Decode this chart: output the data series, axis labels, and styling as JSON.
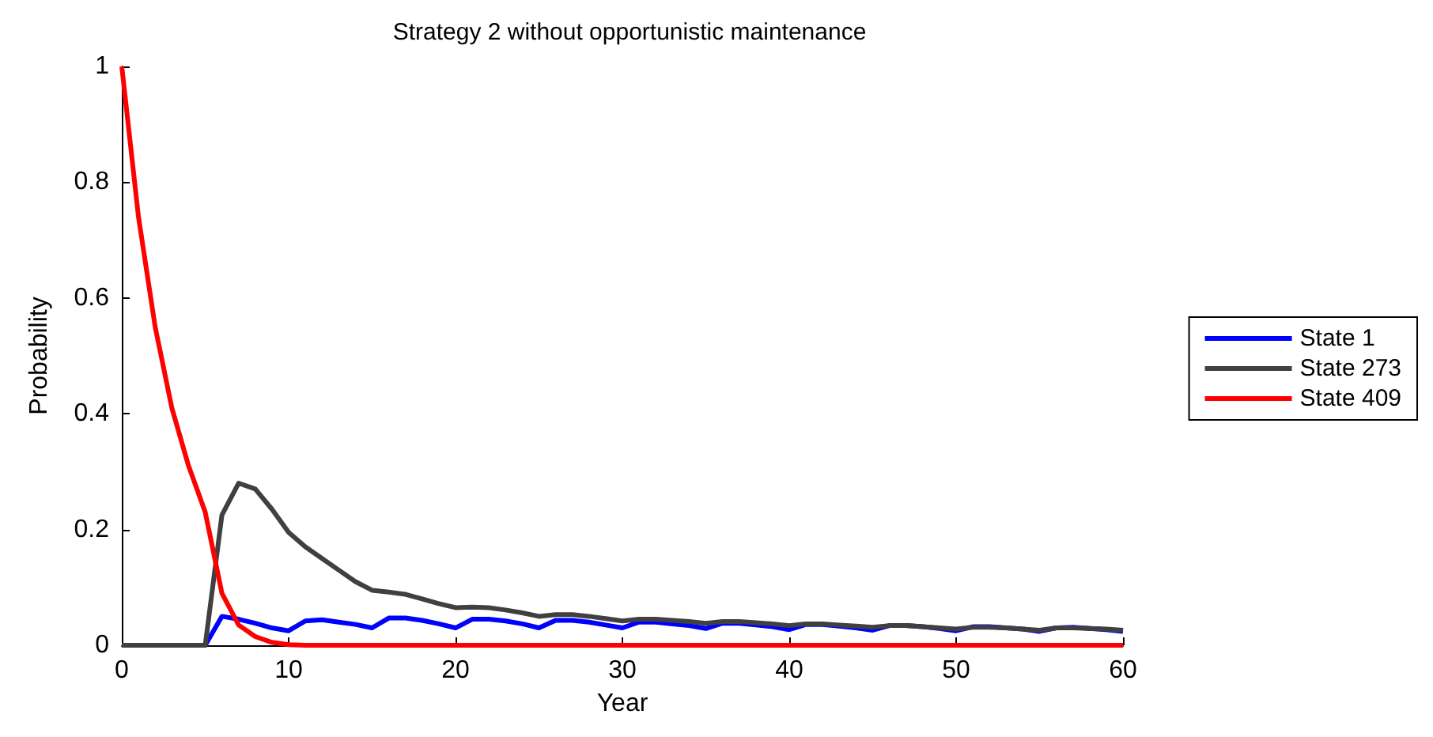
{
  "chart_data": {
    "type": "line",
    "title": "Strategy 2 without opportunistic maintenance",
    "xlabel": "Year",
    "ylabel": "Probability",
    "x": [
      0,
      1,
      2,
      3,
      4,
      5,
      6,
      7,
      8,
      9,
      10,
      11,
      12,
      13,
      14,
      15,
      16,
      17,
      18,
      19,
      20,
      21,
      22,
      23,
      24,
      25,
      26,
      27,
      28,
      29,
      30,
      31,
      32,
      33,
      34,
      35,
      36,
      37,
      38,
      39,
      40,
      41,
      42,
      43,
      44,
      45,
      46,
      47,
      48,
      49,
      50,
      51,
      52,
      53,
      54,
      55,
      56,
      57,
      58,
      59,
      60
    ],
    "series": [
      {
        "name": "State 1",
        "color": "#0000ff",
        "values": [
          null,
          null,
          null,
          null,
          null,
          0,
          0.05,
          0.045,
          0.038,
          0.03,
          0.025,
          0.042,
          0.044,
          0.04,
          0.036,
          0.03,
          0.047,
          0.047,
          0.043,
          0.037,
          0.03,
          0.045,
          0.045,
          0.042,
          0.037,
          0.03,
          0.043,
          0.043,
          0.04,
          0.035,
          0.03,
          0.04,
          0.04,
          0.037,
          0.034,
          0.029,
          0.038,
          0.038,
          0.035,
          0.032,
          0.027,
          0.036,
          0.036,
          0.033,
          0.03,
          0.026,
          0.034,
          0.034,
          0.032,
          0.029,
          0.025,
          0.032,
          0.032,
          0.03,
          0.028,
          0.024,
          0.03,
          0.031,
          0.029,
          0.027,
          0.024
        ]
      },
      {
        "name": "State 273",
        "color": "#404040",
        "values": [
          0,
          0,
          0,
          0,
          0,
          0,
          0.225,
          0.28,
          0.27,
          0.235,
          0.195,
          0.17,
          0.15,
          0.13,
          0.11,
          0.095,
          0.092,
          0.088,
          0.08,
          0.072,
          0.065,
          0.066,
          0.065,
          0.061,
          0.056,
          0.05,
          0.053,
          0.053,
          0.05,
          0.046,
          0.042,
          0.045,
          0.045,
          0.043,
          0.041,
          0.038,
          0.041,
          0.041,
          0.039,
          0.037,
          0.034,
          0.037,
          0.037,
          0.035,
          0.033,
          0.031,
          0.034,
          0.034,
          0.032,
          0.03,
          0.028,
          0.031,
          0.031,
          0.03,
          0.028,
          0.026,
          0.03,
          0.03,
          0.029,
          0.028,
          0.026
        ]
      },
      {
        "name": "State 409",
        "color": "#ff0000",
        "values": [
          1,
          0.74,
          0.55,
          0.41,
          0.31,
          0.23,
          0.09,
          0.035,
          0.015,
          0.005,
          0.001,
          0,
          0,
          0,
          0,
          0,
          0,
          0,
          0,
          0,
          0,
          0,
          0,
          0,
          0,
          0,
          0,
          0,
          0,
          0,
          0,
          0,
          0,
          0,
          0,
          0,
          0,
          0,
          0,
          0,
          0,
          0,
          0,
          0,
          0,
          0,
          0,
          0,
          0,
          0,
          0,
          0,
          0,
          0,
          0,
          0,
          0,
          0,
          0,
          0,
          0
        ]
      }
    ],
    "xlim": [
      0,
      60
    ],
    "xticks": [
      0,
      10,
      20,
      30,
      40,
      50,
      60
    ],
    "ylim": [
      0,
      1
    ],
    "yticks": [
      0,
      0.2,
      0.4,
      0.6,
      0.8,
      1
    ],
    "grid": false,
    "legend": "right",
    "marker": "none",
    "line_style": "solid"
  }
}
